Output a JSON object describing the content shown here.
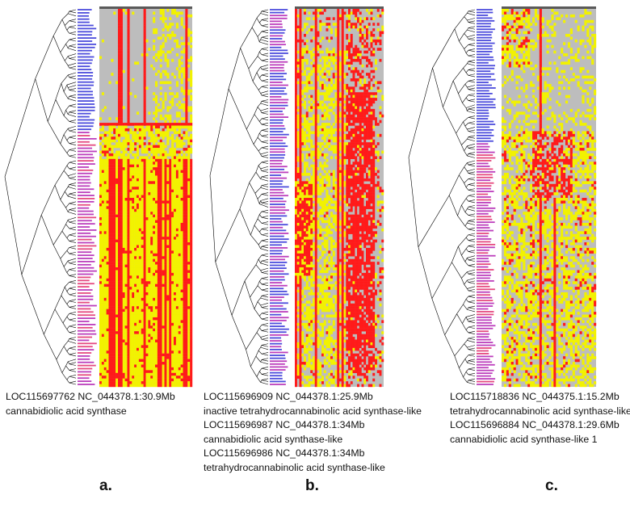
{
  "colors": {
    "background": "#ffffff",
    "heat_gray": "#bdbdbd",
    "heat_yellow": "#f2f200",
    "heat_red": "#ff1a1a",
    "header_bar": "#5a5a5a",
    "tree_line": "#000000",
    "leaf_blue": "#2d2dd6",
    "leaf_purple": "#b01cb0"
  },
  "panels": [
    {
      "label": "a.",
      "caption_lines": [
        "LOC115697762 NC_044378.1:30.9Mb",
        "cannabidiolic acid synthase"
      ]
    },
    {
      "label": "b.",
      "caption_lines": [
        "LOC115696909 NC_044378.1:25.9Mb",
        "inactive tetrahydrocannabinolic acid synthase-like",
        "LOC115696987 NC_044378.1:34Mb",
        "cannabidiolic acid synthase-like",
        "LOC115696986 NC_044378.1:34Mb",
        "tetrahydrocannabinolic acid synthase-like"
      ]
    },
    {
      "label": "c.",
      "caption_lines": [
        "LOC115718836 NC_044375.1:15.2Mb",
        "tetrahydrocannabinolic acid synthase-like",
        "LOC115696884 NC_044378.1:29.6Mb",
        "cannabidiolic acid synthase-like 1"
      ]
    }
  ]
}
